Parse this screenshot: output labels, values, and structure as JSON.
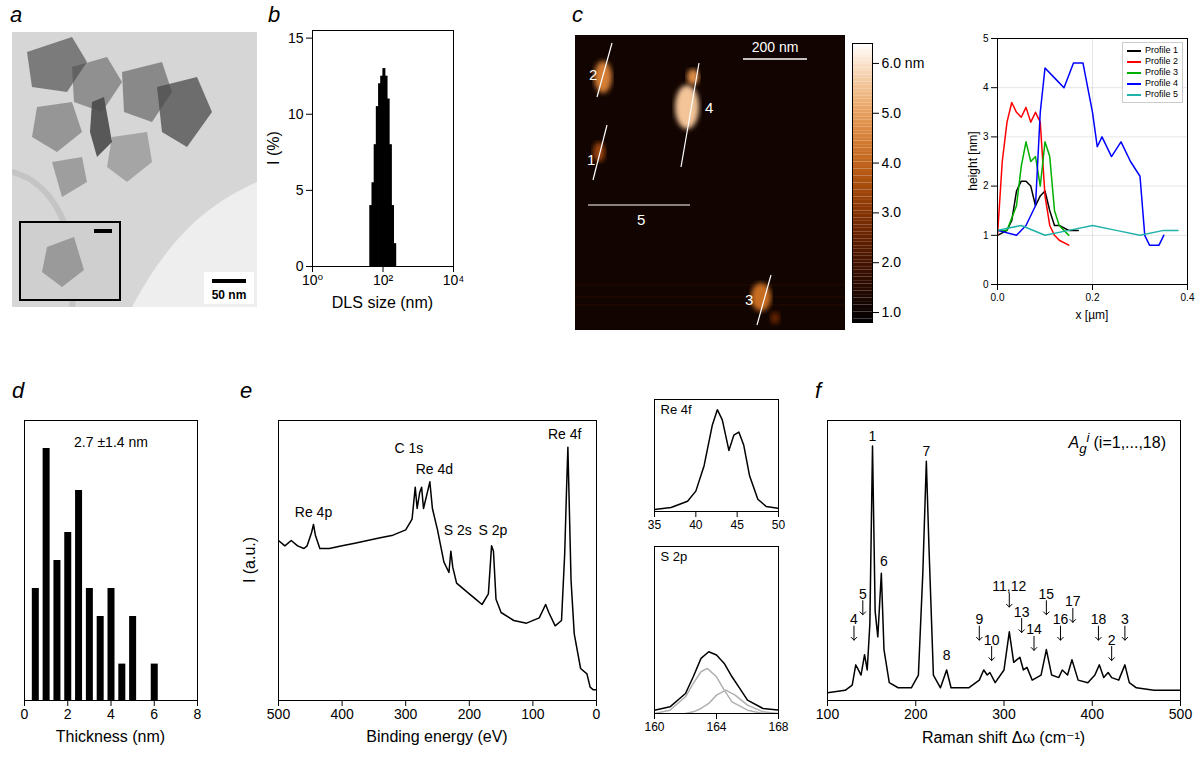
{
  "chart_data": [
    {
      "panel_label": "a",
      "type": "image",
      "scale_bar_label": "50 nm"
    },
    {
      "panel_label": "b",
      "type": "bar",
      "log": "x",
      "xlabel": "DLS size (nm)",
      "ylabel": "I (%)",
      "xlim": [
        1,
        10000
      ],
      "xticks": [
        {
          "value": 1,
          "label": "10⁰"
        },
        {
          "value": 100,
          "label": "10²"
        },
        {
          "value": 10000,
          "label": "10⁴"
        }
      ],
      "ylim": [
        0,
        15.5
      ],
      "yticks": [
        0,
        5,
        10,
        15
      ],
      "color": "#000000",
      "x": [
        45,
        52,
        60,
        69,
        80,
        92,
        106,
        122,
        140,
        162,
        186,
        215
      ],
      "values": [
        4,
        5.5,
        8,
        10.5,
        12,
        12.5,
        13,
        12.5,
        11,
        8,
        4,
        1.5
      ]
    },
    {
      "panel_label": "c",
      "type": "image",
      "scale_bar_label": "200 nm",
      "line_labels": [
        "1",
        "2",
        "3",
        "4",
        "5"
      ],
      "colorbar": {
        "lim": [
          0.8,
          6.4
        ],
        "ticks": [
          {
            "value": 1,
            "label": "1.0"
          },
          {
            "value": 2,
            "label": "2.0"
          },
          {
            "value": 3,
            "label": "3.0"
          },
          {
            "value": 4,
            "label": "4.0"
          },
          {
            "value": 5,
            "label": "5.0"
          },
          {
            "value": 6,
            "label": "6.0 nm"
          }
        ]
      }
    },
    {
      "type": "line",
      "xlabel": "x [µm]",
      "ylabel": "height [nm]",
      "xlim": [
        0,
        0.4
      ],
      "xticks": [
        {
          "value": 0,
          "label": "0.0"
        },
        0.2,
        0.4
      ],
      "ylim": [
        0,
        5
      ],
      "yticks": [
        0,
        1,
        2,
        3,
        4,
        5
      ],
      "grid": true,
      "legend": "top-right",
      "series": [
        {
          "name": "Profile 1",
          "color": "#000000",
          "x": [
            0,
            0.02,
            0.03,
            0.04,
            0.05,
            0.06,
            0.07,
            0.08,
            0.09,
            0.1,
            0.11,
            0.12,
            0.13,
            0.15,
            0.17
          ],
          "values": [
            1.0,
            1.1,
            1.3,
            1.9,
            2.1,
            2.1,
            2.0,
            1.6,
            1.8,
            1.9,
            1.5,
            1.2,
            1.2,
            1.1,
            1.1
          ]
        },
        {
          "name": "Profile 2",
          "color": "#ff0000",
          "x": [
            0,
            0.01,
            0.02,
            0.03,
            0.04,
            0.05,
            0.06,
            0.07,
            0.08,
            0.09,
            0.1,
            0.11,
            0.12,
            0.13,
            0.15
          ],
          "values": [
            1.0,
            2.5,
            3.3,
            3.7,
            3.5,
            3.4,
            3.6,
            3.3,
            3.5,
            3.3,
            1.8,
            1.2,
            1.0,
            0.9,
            0.8
          ]
        },
        {
          "name": "Profile 3",
          "color": "#00b000",
          "x": [
            0,
            0.02,
            0.04,
            0.05,
            0.06,
            0.07,
            0.08,
            0.09,
            0.1,
            0.11,
            0.12,
            0.13,
            0.14,
            0.15
          ],
          "values": [
            1.1,
            1.1,
            1.6,
            2.4,
            2.9,
            2.5,
            2.6,
            2.0,
            2.9,
            2.6,
            1.5,
            1.2,
            1.1,
            1.0
          ]
        },
        {
          "name": "Profile 4",
          "color": "#0000ff",
          "x": [
            0,
            0.04,
            0.06,
            0.08,
            0.09,
            0.1,
            0.12,
            0.14,
            0.16,
            0.18,
            0.2,
            0.21,
            0.22,
            0.24,
            0.26,
            0.28,
            0.3,
            0.31,
            0.32,
            0.34,
            0.35
          ],
          "values": [
            1.1,
            1.0,
            1.2,
            1.6,
            3.5,
            4.4,
            4.2,
            4.0,
            4.5,
            4.5,
            3.5,
            2.8,
            3.0,
            2.6,
            2.9,
            2.5,
            2.2,
            1.0,
            0.8,
            0.8,
            1.0
          ]
        },
        {
          "name": "Profile 5",
          "color": "#20b2aa",
          "x": [
            0,
            0.05,
            0.1,
            0.15,
            0.2,
            0.25,
            0.3,
            0.35,
            0.38
          ],
          "values": [
            1.1,
            1.2,
            1.0,
            1.1,
            1.2,
            1.1,
            1.0,
            1.1,
            1.1
          ]
        }
      ]
    },
    {
      "panel_label": "d",
      "type": "bar",
      "xlabel": "Thickness (nm)",
      "xlim": [
        0,
        8
      ],
      "xticks": [
        0,
        2,
        4,
        6,
        8
      ],
      "ylim": [
        0,
        10
      ],
      "tick_labels": "x",
      "color": "#000000",
      "x": [
        0.5,
        1,
        1.5,
        2,
        2.5,
        3,
        3.5,
        4,
        4.5,
        5,
        6
      ],
      "values": [
        4,
        9,
        5,
        6,
        7.5,
        4,
        3,
        4,
        1.3,
        3,
        1.3
      ],
      "annotations": [
        {
          "text": "2.7 ±1.4 nm",
          "x": 4,
          "y": 9.2
        }
      ]
    },
    {
      "panel_label": "e",
      "type": "line",
      "xlabel": "Binding energy (eV)",
      "ylabel": "I (a.u.)",
      "xlim": [
        500,
        0
      ],
      "xticks": [
        500,
        400,
        300,
        200,
        100,
        0
      ],
      "ylim": [
        0,
        1.05
      ],
      "tick_labels": "x",
      "color": "#000000",
      "x": [
        500,
        490,
        480,
        470,
        460,
        455,
        448,
        445,
        442,
        435,
        420,
        400,
        380,
        360,
        340,
        320,
        300,
        290,
        285,
        282,
        278,
        275,
        272,
        262,
        258,
        250,
        240,
        232,
        229,
        226,
        220,
        200,
        190,
        180,
        170,
        165,
        162,
        158,
        150,
        130,
        110,
        90,
        80,
        75,
        65,
        55,
        50,
        47,
        45,
        43,
        40,
        35,
        25,
        15,
        10,
        5,
        0
      ],
      "values": [
        0.6,
        0.58,
        0.6,
        0.58,
        0.57,
        0.58,
        0.63,
        0.66,
        0.62,
        0.57,
        0.57,
        0.58,
        0.59,
        0.6,
        0.61,
        0.62,
        0.64,
        0.68,
        0.8,
        0.72,
        0.78,
        0.8,
        0.72,
        0.82,
        0.72,
        0.64,
        0.52,
        0.48,
        0.56,
        0.5,
        0.44,
        0.4,
        0.38,
        0.36,
        0.4,
        0.58,
        0.56,
        0.38,
        0.33,
        0.3,
        0.29,
        0.31,
        0.36,
        0.33,
        0.28,
        0.3,
        0.55,
        0.8,
        0.95,
        0.75,
        0.45,
        0.25,
        0.12,
        0.1,
        0.05,
        0.04,
        0.04
      ],
      "annotations": [
        {
          "text": "Re 4p",
          "x": 445,
          "y": 0.69
        },
        {
          "text": "C 1s",
          "x": 295,
          "y": 0.93
        },
        {
          "text": "Re 4d",
          "x": 255,
          "y": 0.85
        },
        {
          "text": "S 2s",
          "x": 218,
          "y": 0.62
        },
        {
          "text": "S 2p",
          "x": 163,
          "y": 0.62
        },
        {
          "text": "Re 4f",
          "x": 50,
          "y": 0.98
        }
      ]
    },
    {
      "type": "line",
      "title": "Re 4f",
      "xlim": [
        35,
        50
      ],
      "xticks": [
        35,
        40,
        45,
        50
      ],
      "ylim": [
        0,
        1.1
      ],
      "tick_labels": "x",
      "color": "#000000",
      "x": [
        35,
        37,
        39,
        40,
        41,
        42,
        42.6,
        43.2,
        44,
        44.6,
        45.2,
        45.8,
        46.5,
        47.5,
        48.5,
        50
      ],
      "values": [
        0.02,
        0.04,
        0.1,
        0.2,
        0.45,
        0.85,
        1.0,
        0.9,
        0.6,
        0.75,
        0.78,
        0.65,
        0.35,
        0.12,
        0.05,
        0.03
      ]
    },
    {
      "type": "line",
      "title": "S 2p",
      "xlim": [
        160,
        168
      ],
      "xticks": [
        160,
        164,
        168
      ],
      "ylim": [
        0,
        1
      ],
      "tick_labels": "x",
      "series": [
        {
          "color": "#b0b0b0",
          "x": [
            160,
            161,
            162,
            162.5,
            163,
            163.4,
            164,
            164.5,
            165,
            166,
            167
          ],
          "values": [
            0.0,
            0.02,
            0.1,
            0.18,
            0.25,
            0.27,
            0.22,
            0.14,
            0.07,
            0.02,
            0.0
          ]
        },
        {
          "color": "#b0b0b0",
          "x": [
            162,
            162.5,
            163,
            163.5,
            164,
            164.6,
            165.2,
            166,
            167,
            168
          ],
          "values": [
            0.0,
            0.01,
            0.03,
            0.06,
            0.11,
            0.14,
            0.11,
            0.05,
            0.01,
            0.0
          ]
        },
        {
          "color": "#000000",
          "x": [
            160,
            161,
            162,
            162.5,
            163,
            163.5,
            164,
            164.5,
            165,
            165.5,
            166,
            167,
            168
          ],
          "values": [
            0.02,
            0.04,
            0.12,
            0.22,
            0.33,
            0.37,
            0.35,
            0.3,
            0.22,
            0.15,
            0.08,
            0.03,
            0.02
          ]
        }
      ]
    },
    {
      "panel_label": "f",
      "type": "line",
      "xlabel": "Raman shift Δω (cm⁻¹)",
      "xlim": [
        100,
        500
      ],
      "xticks": [
        100,
        200,
        300,
        400,
        500
      ],
      "ylim": [
        0,
        1.1
      ],
      "tick_labels": "x",
      "color": "#000000",
      "formula_label": {
        "base": "A",
        "sub": "g",
        "sup": "i",
        "text": "(i=1,...,18)"
      },
      "x": [
        100,
        120,
        128,
        132,
        135,
        138,
        142,
        145,
        148,
        151,
        154,
        157,
        161,
        164,
        170,
        180,
        195,
        203,
        208,
        212,
        215,
        220,
        228,
        235,
        240,
        260,
        272,
        277,
        281,
        284,
        290,
        300,
        306,
        311,
        318,
        322,
        326,
        332,
        342,
        348,
        354,
        362,
        366,
        372,
        377,
        384,
        395,
        403,
        408,
        413,
        418,
        422,
        430,
        437,
        442,
        450,
        470,
        500
      ],
      "values": [
        0.03,
        0.04,
        0.06,
        0.14,
        0.12,
        0.1,
        0.18,
        0.12,
        0.3,
        1.0,
        0.35,
        0.25,
        0.5,
        0.2,
        0.07,
        0.05,
        0.05,
        0.1,
        0.5,
        0.94,
        0.6,
        0.1,
        0.05,
        0.12,
        0.05,
        0.05,
        0.08,
        0.12,
        0.1,
        0.11,
        0.07,
        0.12,
        0.27,
        0.15,
        0.17,
        0.12,
        0.13,
        0.08,
        0.1,
        0.2,
        0.1,
        0.09,
        0.12,
        0.1,
        0.16,
        0.08,
        0.07,
        0.1,
        0.14,
        0.09,
        0.11,
        0.09,
        0.08,
        0.14,
        0.07,
        0.05,
        0.04,
        0.04
      ],
      "annotations": [
        {
          "text": "1",
          "x": 151,
          "y": 1.02
        },
        {
          "text": "6",
          "x": 164,
          "y": 0.53
        },
        {
          "text": "7",
          "x": 212,
          "y": 0.96
        },
        {
          "text": "8",
          "x": 235,
          "y": 0.16
        }
      ],
      "arrow_annotations": [
        {
          "text": "4",
          "x": 130,
          "y": 0.3
        },
        {
          "text": "5",
          "x": 140,
          "y": 0.4
        },
        {
          "text": "9",
          "x": 272,
          "y": 0.3
        },
        {
          "text": "10",
          "x": 286,
          "y": 0.22
        },
        {
          "text": "11,12",
          "x": 306,
          "y": 0.43
        },
        {
          "text": "13",
          "x": 320,
          "y": 0.33
        },
        {
          "text": "14",
          "x": 334,
          "y": 0.26
        },
        {
          "text": "15",
          "x": 348,
          "y": 0.4
        },
        {
          "text": "16",
          "x": 364,
          "y": 0.3
        },
        {
          "text": "17",
          "x": 378,
          "y": 0.37
        },
        {
          "text": "18",
          "x": 407,
          "y": 0.3
        },
        {
          "text": "2",
          "x": 422,
          "y": 0.22
        },
        {
          "text": "3",
          "x": 437,
          "y": 0.3
        }
      ]
    }
  ]
}
